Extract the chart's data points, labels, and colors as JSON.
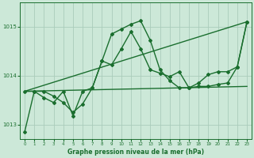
{
  "background_color": "#cce8d8",
  "grid_color": "#aaccbb",
  "line_color": "#1a6e2e",
  "title": "Graphe pression niveau de la mer (hPa)",
  "xlim": [
    -0.5,
    23.5
  ],
  "ylim": [
    1012.7,
    1015.5
  ],
  "yticks": [
    1013,
    1014,
    1015
  ],
  "xticks": [
    0,
    1,
    2,
    3,
    4,
    5,
    6,
    7,
    8,
    9,
    10,
    11,
    12,
    13,
    14,
    15,
    16,
    17,
    18,
    19,
    20,
    21,
    22,
    23
  ],
  "series0": {
    "x": [
      0,
      1,
      2,
      3,
      4,
      5,
      6,
      7,
      8,
      9,
      10,
      11,
      12,
      13,
      14,
      15,
      16,
      17,
      18,
      19,
      20,
      21,
      22,
      23
    ],
    "y": [
      1012.85,
      1013.68,
      1013.68,
      1013.58,
      1013.45,
      1013.25,
      1013.42,
      1013.75,
      1014.3,
      1014.85,
      1014.95,
      1015.05,
      1015.12,
      1014.72,
      1014.12,
      1013.9,
      1013.75,
      1013.75,
      1013.78,
      1013.78,
      1013.82,
      1013.85,
      1014.18,
      1015.1
    ]
  },
  "series1": {
    "x": [
      0,
      1,
      2,
      3,
      4,
      5,
      6,
      7,
      8,
      9,
      10,
      11,
      12,
      13,
      14,
      15,
      16,
      17,
      18,
      19,
      20,
      21,
      22,
      23
    ],
    "y": [
      1013.68,
      1013.68,
      1013.55,
      1013.45,
      1013.68,
      1013.18,
      1013.68,
      1013.75,
      1014.3,
      1014.22,
      1014.55,
      1014.9,
      1014.55,
      1014.12,
      1014.05,
      1013.98,
      1014.08,
      1013.75,
      1013.85,
      1014.02,
      1014.08,
      1014.08,
      1014.18,
      1015.1
    ]
  },
  "line_flat": {
    "x": [
      0,
      23
    ],
    "y": [
      1013.68,
      1013.78
    ]
  },
  "line_diag": {
    "x": [
      0,
      23
    ],
    "y": [
      1013.68,
      1015.1
    ]
  },
  "marker": "D",
  "markersize": 2.0,
  "linewidth": 1.0
}
